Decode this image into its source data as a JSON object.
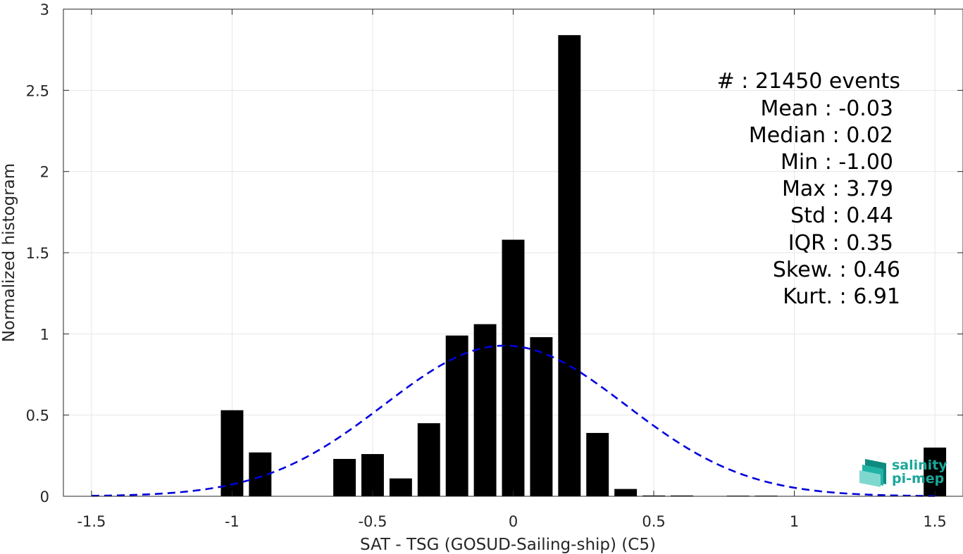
{
  "chart_data": {
    "type": "bar",
    "xlabel": "SAT - TSG (GOSUD-Sailing-ship) (C5)",
    "ylabel": "Normalized histogram",
    "xlim": [
      -1.6,
      1.6
    ],
    "ylim": [
      0,
      3
    ],
    "xticks": [
      "-1.5",
      "-1",
      "-0.5",
      "0",
      "0.5",
      "1",
      "1.5"
    ],
    "xtick_values": [
      -1.5,
      -1,
      -0.5,
      0,
      0.5,
      1,
      1.5
    ],
    "yticks": [
      "0",
      "0.5",
      "1",
      "1.5",
      "2",
      "2.5",
      "3"
    ],
    "ytick_values": [
      0,
      0.5,
      1,
      1.5,
      2,
      2.5,
      3
    ],
    "grid": true,
    "bin_width": 0.1,
    "bar_width_fraction": 0.8,
    "bars": {
      "x": [
        -1.0,
        -0.9,
        -0.6,
        -0.5,
        -0.4,
        -0.3,
        -0.2,
        -0.1,
        0.0,
        0.1,
        0.2,
        0.3,
        0.4,
        0.5,
        0.6,
        0.8,
        0.9,
        1.5
      ],
      "values": [
        0.53,
        0.27,
        0.23,
        0.26,
        0.11,
        0.45,
        0.99,
        1.06,
        1.58,
        0.98,
        2.84,
        0.39,
        0.045,
        0.005,
        0.005,
        0.004,
        0.004,
        0.3
      ],
      "color": "#000000"
    },
    "fit": {
      "type": "normal",
      "mean": -0.03,
      "std": 0.43,
      "color": "#0000dd",
      "style": "dashed"
    }
  },
  "stats": [
    "#  : 21450 events",
    "Mean : -0.03",
    "Median : 0.02",
    "Min : -1.00",
    "Max : 3.79",
    "Std : 0.44",
    "IQR : 0.35",
    "Skew. : 0.46",
    "Kurt. : 6.91"
  ],
  "logo": {
    "line1": "salinity",
    "line2": "pi-mep",
    "color": "#1aa79a"
  }
}
